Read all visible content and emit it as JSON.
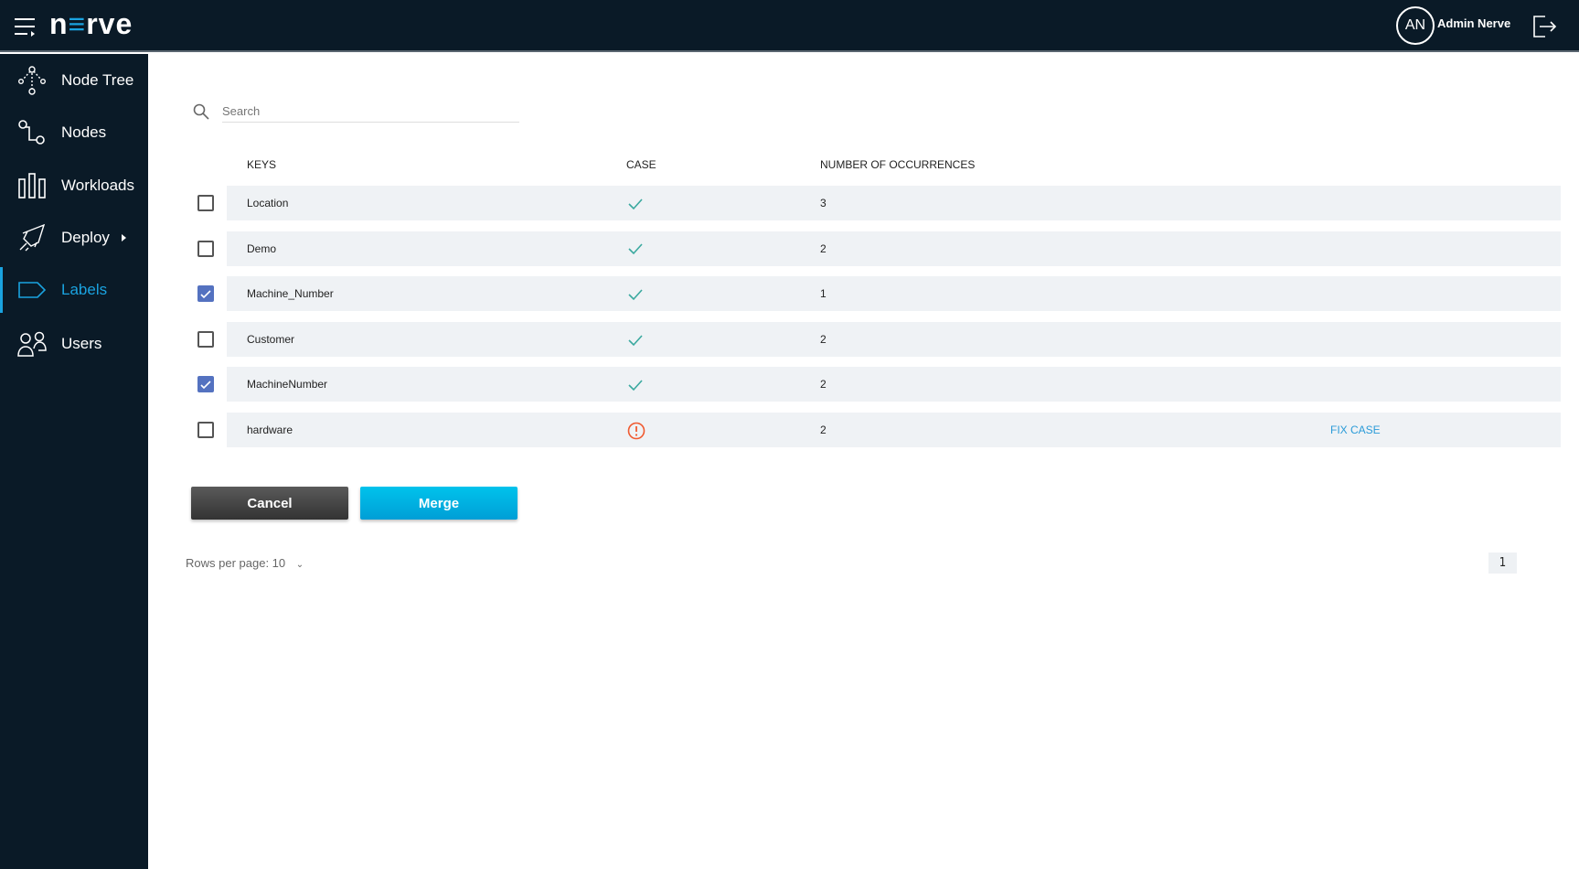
{
  "header": {
    "logo": "nerve",
    "avatar_initials": "AN",
    "user_name": "Admin Nerve"
  },
  "sidebar": {
    "items": [
      {
        "label": "Node Tree",
        "icon": "node-tree-icon"
      },
      {
        "label": "Nodes",
        "icon": "nodes-icon"
      },
      {
        "label": "Workloads",
        "icon": "workloads-icon"
      },
      {
        "label": "Deploy",
        "icon": "rocket-icon"
      },
      {
        "label": "Labels",
        "icon": "label-icon",
        "active": true
      },
      {
        "label": "Users",
        "icon": "users-icon"
      }
    ]
  },
  "search": {
    "placeholder": "Search",
    "value": ""
  },
  "table": {
    "headers": [
      "KEYS",
      "CASE",
      "NUMBER OF OCCURRENCES"
    ],
    "rows": [
      {
        "key": "Location",
        "checked": false,
        "case_ok": true,
        "occurrences": "3"
      },
      {
        "key": "Demo",
        "checked": false,
        "case_ok": true,
        "occurrences": "2"
      },
      {
        "key": "Machine_Number",
        "checked": true,
        "case_ok": true,
        "occurrences": "1"
      },
      {
        "key": "Customer",
        "checked": false,
        "case_ok": true,
        "occurrences": "2"
      },
      {
        "key": "MachineNumber",
        "checked": true,
        "case_ok": true,
        "occurrences": "2"
      },
      {
        "key": "hardware",
        "checked": false,
        "case_ok": false,
        "occurrences": "2",
        "action": "FIX CASE"
      }
    ]
  },
  "buttons": {
    "cancel": "Cancel",
    "merge": "Merge"
  },
  "pagination": {
    "rows_per_page": "Rows per page: 10",
    "page": "1"
  },
  "colors": {
    "accent": "#1aa3e0",
    "check": "#3aa99f",
    "warning": "#f05a30",
    "checkbox": "#5472c0"
  }
}
